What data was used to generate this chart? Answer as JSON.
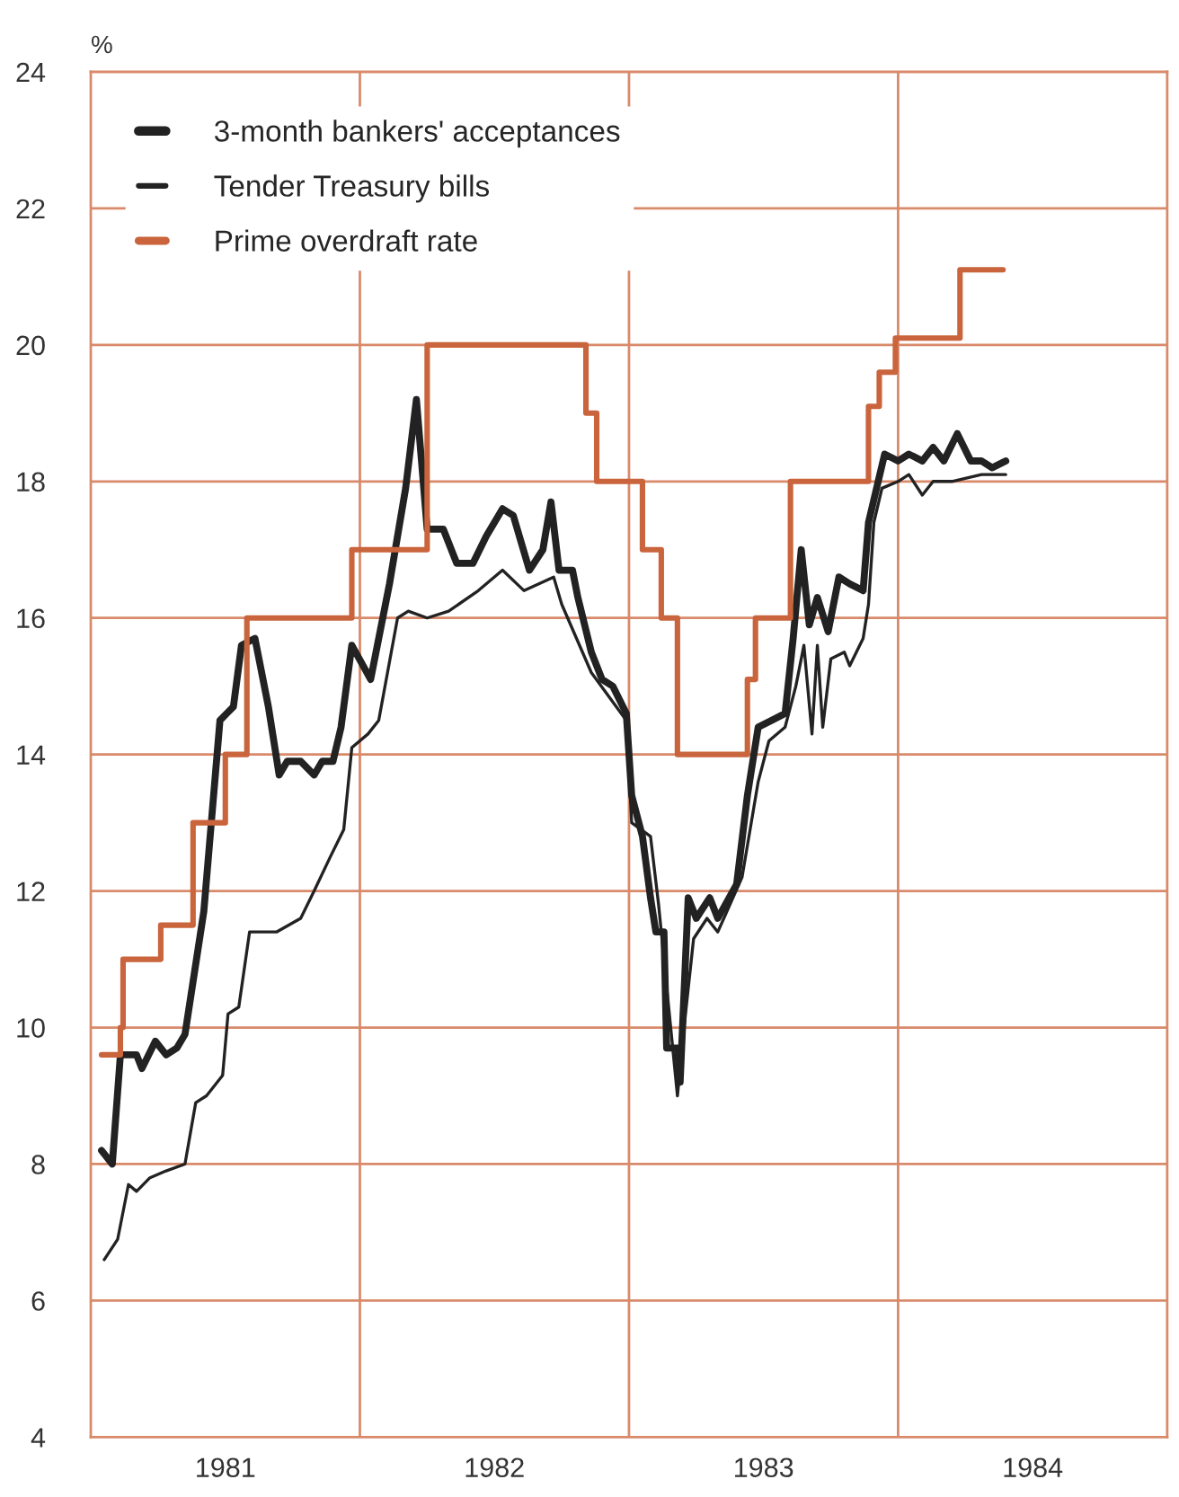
{
  "chart_data": {
    "type": "line",
    "ylabel": "%",
    "xlim": [
      1981,
      1985
    ],
    "ylim": [
      4,
      24
    ],
    "xticks": [
      {
        "value": 1981.5,
        "label": "1981"
      },
      {
        "value": 1982.5,
        "label": "1982"
      },
      {
        "value": 1983.5,
        "label": "1983"
      },
      {
        "value": 1984.5,
        "label": "1984"
      }
    ],
    "yticks": [
      4,
      6,
      8,
      10,
      12,
      14,
      16,
      18,
      20,
      22,
      24
    ],
    "grid": "y",
    "legend": "top left",
    "ref_lines": [
      {
        "axis": "x",
        "value": 1982,
        "color": "#d98a6a"
      },
      {
        "axis": "x",
        "value": 1983,
        "color": "#d98a6a"
      },
      {
        "axis": "x",
        "value": 1984,
        "color": "#d98a6a"
      }
    ],
    "series": [
      {
        "name": "3-month bankers' acceptances",
        "color": "#222222",
        "x": [
          1981.04,
          1981.08,
          1981.11,
          1981.17,
          1981.19,
          1981.24,
          1981.28,
          1981.32,
          1981.35,
          1981.42,
          1981.48,
          1981.53,
          1981.56,
          1981.61,
          1981.66,
          1981.7,
          1981.73,
          1981.78,
          1981.83,
          1981.86,
          1981.9,
          1981.93,
          1981.97,
          1982.04,
          1982.11,
          1982.17,
          1982.21,
          1982.25,
          1982.31,
          1982.36,
          1982.42,
          1982.47,
          1982.53,
          1982.57,
          1982.63,
          1982.68,
          1982.71,
          1982.74,
          1982.79,
          1982.81,
          1982.86,
          1982.9,
          1982.94,
          1982.99,
          1983.01,
          1983.05,
          1983.08,
          1983.1,
          1983.13,
          1983.14,
          1983.18,
          1983.19,
          1983.22,
          1983.25,
          1983.3,
          1983.33,
          1983.4,
          1983.44,
          1983.48,
          1983.53,
          1983.58,
          1983.61,
          1983.64,
          1983.67,
          1983.7,
          1983.74,
          1983.78,
          1983.82,
          1983.87,
          1983.89,
          1983.92,
          1983.95,
          1984.0,
          1984.04,
          1984.09,
          1984.13,
          1984.17,
          1984.22,
          1984.27,
          1984.31,
          1984.35,
          1984.4
        ],
        "values": [
          8.2,
          8.0,
          9.6,
          9.6,
          9.4,
          9.8,
          9.6,
          9.7,
          9.9,
          11.7,
          14.5,
          14.7,
          15.6,
          15.7,
          14.7,
          13.7,
          13.9,
          13.9,
          13.7,
          13.9,
          13.9,
          14.4,
          15.6,
          15.1,
          16.5,
          17.9,
          19.2,
          17.3,
          17.3,
          16.8,
          16.8,
          17.2,
          17.6,
          17.5,
          16.7,
          17.0,
          17.7,
          16.7,
          16.7,
          16.3,
          15.5,
          15.1,
          15.0,
          14.6,
          13.4,
          12.8,
          11.9,
          11.4,
          11.4,
          9.7,
          9.7,
          9.2,
          11.9,
          11.6,
          11.9,
          11.6,
          12.1,
          13.4,
          14.4,
          14.5,
          14.6,
          15.7,
          17.0,
          15.9,
          16.3,
          15.8,
          16.6,
          16.5,
          16.4,
          17.4,
          17.9,
          18.4,
          18.3,
          18.4,
          18.3,
          18.5,
          18.3,
          18.7,
          18.3,
          18.3,
          18.2,
          18.3
        ]
      },
      {
        "name": "Tender Treasury bills",
        "color": "#222222",
        "x": [
          1981.05,
          1981.1,
          1981.14,
          1981.17,
          1981.22,
          1981.28,
          1981.35,
          1981.39,
          1981.43,
          1981.49,
          1981.51,
          1981.55,
          1981.59,
          1981.69,
          1981.78,
          1981.83,
          1981.89,
          1981.94,
          1981.97,
          1982.03,
          1982.07,
          1982.14,
          1982.18,
          1982.25,
          1982.33,
          1982.44,
          1982.53,
          1982.61,
          1982.72,
          1982.75,
          1982.86,
          1982.99,
          1983.01,
          1983.08,
          1983.11,
          1983.15,
          1983.18,
          1983.21,
          1983.24,
          1983.29,
          1983.33,
          1983.42,
          1983.48,
          1983.52,
          1983.58,
          1983.62,
          1983.65,
          1983.68,
          1983.7,
          1983.72,
          1983.75,
          1983.8,
          1983.82,
          1983.87,
          1983.89,
          1983.91,
          1983.94,
          1984.0,
          1984.04,
          1984.09,
          1984.13,
          1984.2,
          1984.31,
          1984.4
        ],
        "values": [
          6.6,
          6.9,
          7.7,
          7.6,
          7.8,
          7.9,
          8.0,
          8.9,
          9.0,
          9.3,
          10.2,
          10.3,
          11.4,
          11.4,
          11.6,
          12.0,
          12.5,
          12.9,
          14.1,
          14.3,
          14.5,
          16.0,
          16.1,
          16.0,
          16.1,
          16.4,
          16.7,
          16.4,
          16.6,
          16.2,
          15.2,
          14.5,
          13.0,
          12.8,
          11.8,
          10.2,
          9.0,
          10.2,
          11.3,
          11.6,
          11.4,
          12.2,
          13.6,
          14.2,
          14.4,
          15.0,
          15.6,
          14.3,
          15.6,
          14.4,
          15.4,
          15.5,
          15.3,
          15.7,
          16.2,
          17.4,
          17.9,
          18.0,
          18.1,
          17.8,
          18.0,
          18.0,
          18.1,
          18.1
        ]
      },
      {
        "name": "Prime overdraft rate",
        "color": "#c9643c",
        "type": "step",
        "x": [
          1981.04,
          1981.11,
          1981.12,
          1981.26,
          1981.38,
          1981.5,
          1981.58,
          1981.97,
          1982.25,
          1982.84,
          1982.88,
          1983.05,
          1983.12,
          1983.18,
          1983.44,
          1983.47,
          1983.6,
          1983.89,
          1983.93,
          1983.99,
          1984.23,
          1984.39
        ],
        "values": [
          9.6,
          10.0,
          11.0,
          11.5,
          13.0,
          14.0,
          16.0,
          17.0,
          20.0,
          19.0,
          18.0,
          17.0,
          16.0,
          14.0,
          15.1,
          16.0,
          18.0,
          19.1,
          19.6,
          20.1,
          21.1,
          21.1
        ]
      }
    ]
  }
}
